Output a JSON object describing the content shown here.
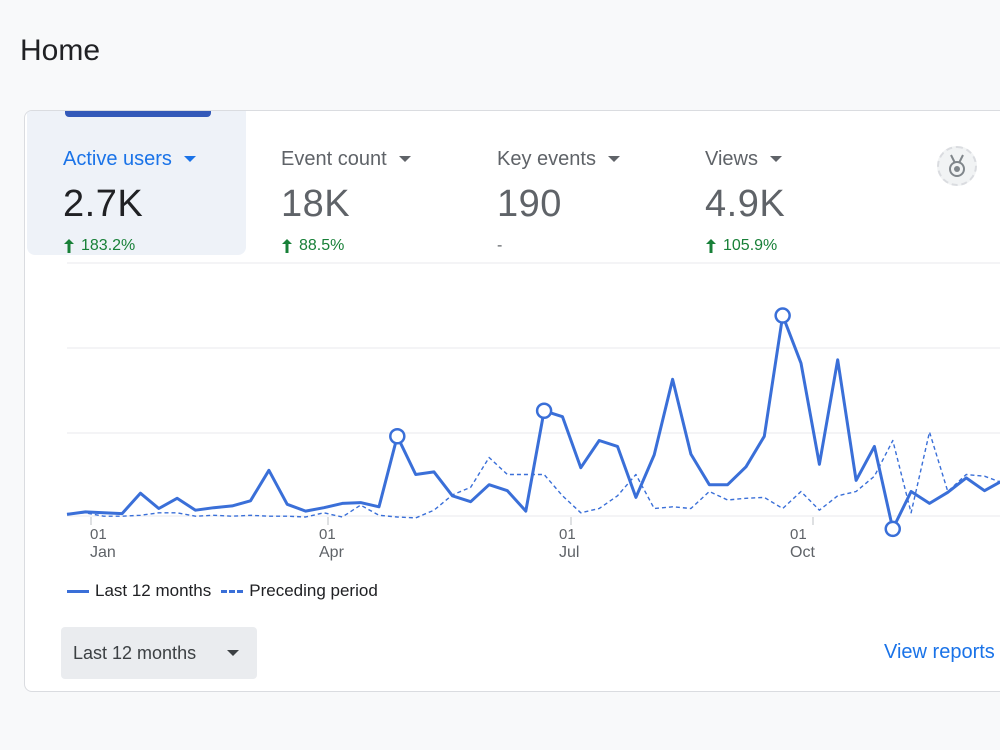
{
  "page": {
    "title": "Home"
  },
  "metrics": [
    {
      "label": "Active users",
      "value": "2.7K",
      "change": "183.2%",
      "trend": "up",
      "active": true
    },
    {
      "label": "Event count",
      "value": "18K",
      "change": "88.5%",
      "trend": "up",
      "active": false
    },
    {
      "label": "Key events",
      "value": "190",
      "change": "-",
      "trend": "flat",
      "active": false
    },
    {
      "label": "Views",
      "value": "4.9K",
      "change": "105.9%",
      "trend": "up",
      "active": false
    }
  ],
  "insights_icon": "insights-badge-icon",
  "legend": {
    "current": "Last 12 months",
    "previous": "Preceding period"
  },
  "date_range": {
    "selected": "Last 12 months"
  },
  "view_reports": {
    "label": "View reports"
  },
  "colors": {
    "accent": "#1a73e8",
    "series": "#3a6fd8",
    "positive": "#188038"
  },
  "chart_data": {
    "type": "line",
    "x_ticks": [
      {
        "day": "01",
        "month": "Jan"
      },
      {
        "day": "01",
        "month": "Apr"
      },
      {
        "day": "01",
        "month": "Jul"
      },
      {
        "day": "01",
        "month": "Oct"
      }
    ],
    "grid": true,
    "series": [
      {
        "name": "Last 12 months",
        "style": "solid",
        "values": [
          3,
          6,
          5,
          4,
          28,
          10,
          22,
          8,
          11,
          13,
          19,
          55,
          15,
          7,
          11,
          16,
          17,
          12,
          95,
          50,
          53,
          25,
          18,
          38,
          31,
          7,
          125,
          118,
          58,
          90,
          83,
          23,
          73,
          162,
          74,
          38,
          38,
          59,
          95,
          237,
          181,
          62,
          185,
          43,
          83,
          -14,
          30,
          16,
          29,
          46,
          31,
          43,
          24,
          14,
          9
        ]
      },
      {
        "name": "Preceding period",
        "style": "dashed",
        "values": [
          4,
          5,
          1,
          1,
          2,
          5,
          5,
          1,
          2,
          1,
          2,
          1,
          1,
          0,
          5,
          0,
          14,
          2,
          0,
          -1,
          8,
          26,
          35,
          70,
          50,
          50,
          50,
          25,
          5,
          10,
          25,
          50,
          10,
          12,
          10,
          30,
          20,
          22,
          23,
          10,
          30,
          8,
          25,
          30,
          48,
          90,
          5,
          100,
          30,
          50,
          48,
          40,
          30,
          16,
          30
        ]
      }
    ],
    "highlighted_points": [
      18,
      26,
      39,
      45
    ]
  }
}
